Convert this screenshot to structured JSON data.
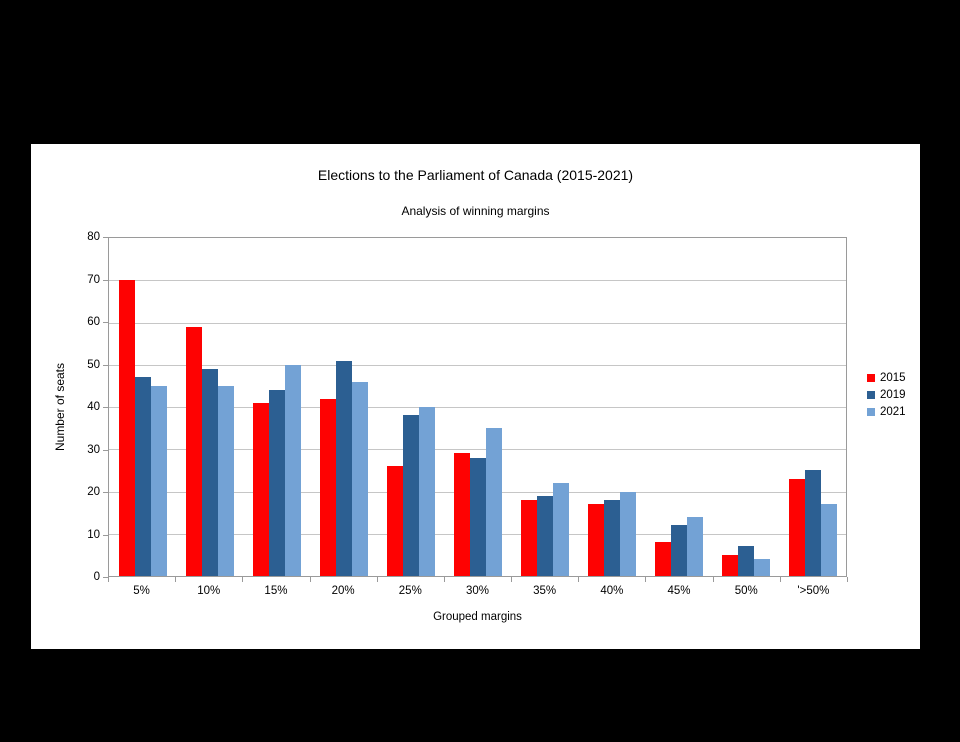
{
  "chart_data": {
    "type": "bar",
    "title": "Elections to the Parliament of Canada (2015-2021)",
    "subtitle": "Analysis of winning margins",
    "xlabel": "Grouped margins",
    "ylabel": "Number of seats",
    "categories": [
      "5%",
      "10%",
      "15%",
      "20%",
      "25%",
      "30%",
      "35%",
      "40%",
      "45%",
      "50%",
      "'>50%"
    ],
    "series": [
      {
        "name": "2015",
        "color": "#fe0202",
        "values": [
          70,
          59,
          41,
          42,
          26,
          29,
          18,
          17,
          8,
          5,
          23
        ]
      },
      {
        "name": "2019",
        "color": "#2c5f92",
        "values": [
          47,
          49,
          44,
          51,
          38,
          28,
          19,
          18,
          12,
          7,
          25
        ]
      },
      {
        "name": "2021",
        "color": "#73a2d5",
        "values": [
          45,
          45,
          50,
          46,
          40,
          35,
          22,
          20,
          14,
          4,
          17
        ]
      }
    ],
    "ylim": [
      0,
      80
    ],
    "ytick_step": 10,
    "grid": true,
    "legend_position": "right",
    "colors": {
      "background": "#000000",
      "panel": "#ffffff",
      "gridline": "#c6c6c6",
      "axis": "#9a9a9a",
      "text": "#000000"
    }
  }
}
